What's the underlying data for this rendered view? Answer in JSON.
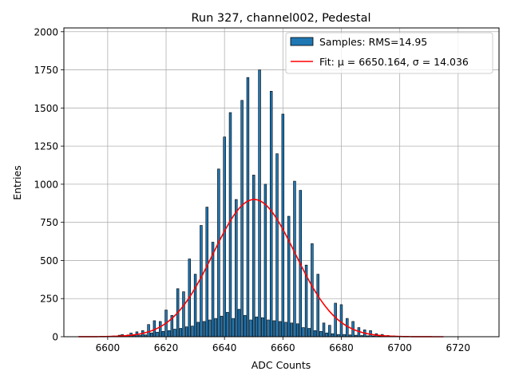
{
  "chart_data": {
    "type": "bar",
    "title": "Run 327, channel002, Pedestal",
    "xlabel": "ADC Counts",
    "ylabel": "Entries",
    "xlim": [
      6585,
      6734
    ],
    "ylim": [
      0,
      2025
    ],
    "xticks": [
      6600,
      6620,
      6640,
      6660,
      6680,
      6700,
      6720
    ],
    "yticks": [
      0,
      250,
      500,
      750,
      1000,
      1250,
      1500,
      1750,
      2000
    ],
    "grid": true,
    "legend_position": "top-right",
    "legend": [
      {
        "label": "Samples: RMS=14.95",
        "kind": "patch"
      },
      {
        "label": "Fit: μ = 6650.164, σ = 14.036",
        "kind": "line"
      }
    ],
    "series": [
      {
        "kind": "histogram",
        "color": "#1f77b4",
        "edgecolor": "#000000",
        "x": [
          6600,
          6601,
          6602,
          6603,
          6604,
          6605,
          6606,
          6607,
          6608,
          6609,
          6610,
          6611,
          6612,
          6613,
          6614,
          6615,
          6616,
          6617,
          6618,
          6619,
          6620,
          6621,
          6622,
          6623,
          6624,
          6625,
          6626,
          6627,
          6628,
          6629,
          6630,
          6631,
          6632,
          6633,
          6634,
          6635,
          6636,
          6637,
          6638,
          6639,
          6640,
          6641,
          6642,
          6643,
          6644,
          6645,
          6646,
          6647,
          6648,
          6649,
          6650,
          6651,
          6652,
          6653,
          6654,
          6655,
          6656,
          6657,
          6658,
          6659,
          6660,
          6661,
          6662,
          6663,
          6664,
          6665,
          6666,
          6667,
          6668,
          6669,
          6670,
          6671,
          6672,
          6673,
          6674,
          6675,
          6676,
          6677,
          6678,
          6679,
          6680,
          6681,
          6682,
          6683,
          6684,
          6685,
          6686,
          6687,
          6688,
          6689,
          6690,
          6691,
          6692,
          6693,
          6694,
          6695,
          6696,
          6697,
          6698,
          6699,
          6700,
          6701
        ],
        "values": [
          2,
          2,
          5,
          4,
          10,
          14,
          6,
          12,
          24,
          8,
          32,
          10,
          40,
          12,
          80,
          25,
          105,
          30,
          100,
          35,
          175,
          40,
          140,
          50,
          315,
          55,
          295,
          65,
          510,
          70,
          410,
          95,
          730,
          100,
          850,
          110,
          620,
          120,
          1100,
          135,
          1310,
          160,
          1470,
          120,
          900,
          180,
          1550,
          140,
          1700,
          110,
          1060,
          130,
          1750,
          125,
          1000,
          110,
          1610,
          105,
          1200,
          100,
          1460,
          95,
          790,
          90,
          1020,
          85,
          960,
          60,
          470,
          55,
          610,
          40,
          410,
          35,
          90,
          25,
          75,
          20,
          220,
          15,
          210,
          15,
          120,
          12,
          100,
          10,
          60,
          8,
          45,
          6,
          40,
          5,
          20,
          4,
          15,
          3,
          8,
          2,
          5,
          1,
          2,
          1
        ]
      },
      {
        "kind": "line",
        "color": "#ff0000",
        "mu": 6650.164,
        "sigma": 14.036,
        "amplitude": 900,
        "range": [
          6590,
          6715
        ]
      }
    ]
  }
}
